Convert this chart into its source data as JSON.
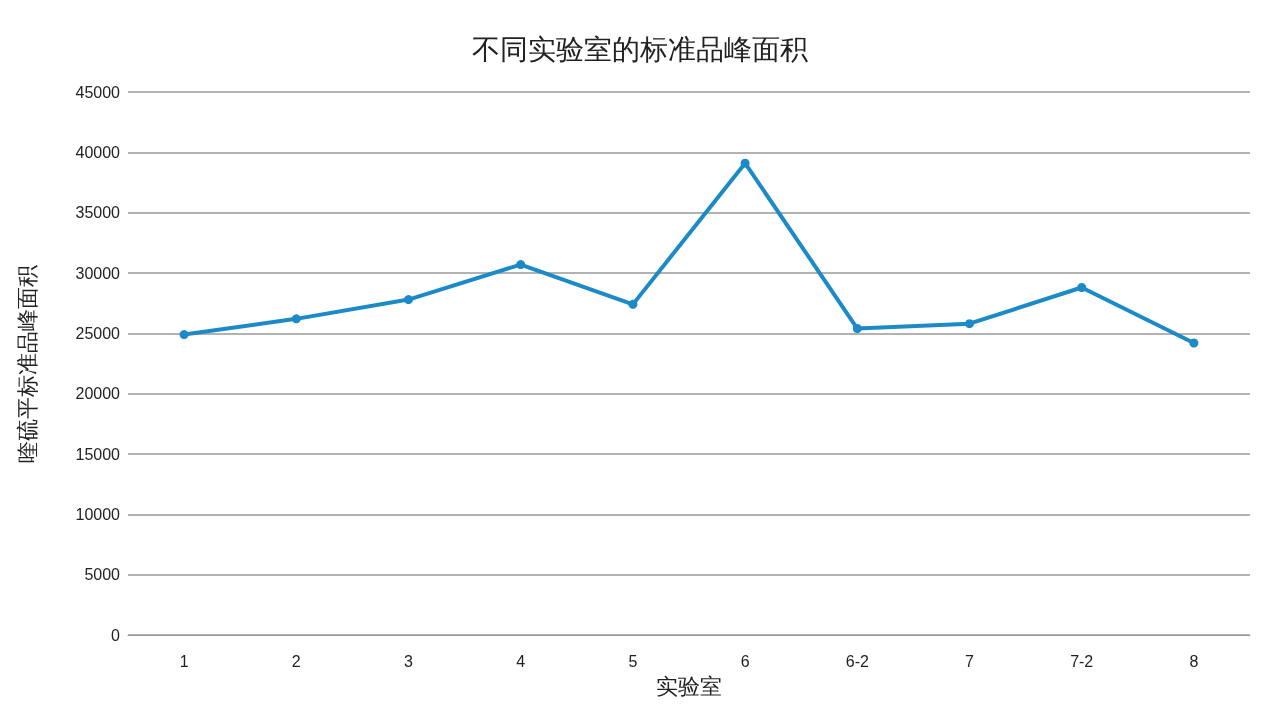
{
  "chart_data": {
    "type": "line",
    "title": "不同实验室的标准品峰面积",
    "xlabel": "实验室",
    "ylabel": "喹硫平标准品峰面积",
    "categories": [
      "1",
      "2",
      "3",
      "4",
      "5",
      "6",
      "6-2",
      "7",
      "7-2",
      "8"
    ],
    "series": [
      {
        "color": "#1b8ac6",
        "values": [
          24900,
          26200,
          27800,
          30700,
          27400,
          39100,
          25400,
          25800,
          28800,
          24200
        ]
      }
    ],
    "ylim": [
      0,
      45000
    ],
    "yticks": [
      0,
      5000,
      10000,
      15000,
      20000,
      25000,
      30000,
      35000,
      40000,
      45000
    ],
    "grid": "y",
    "marker": "circle",
    "line_style": "solid"
  }
}
